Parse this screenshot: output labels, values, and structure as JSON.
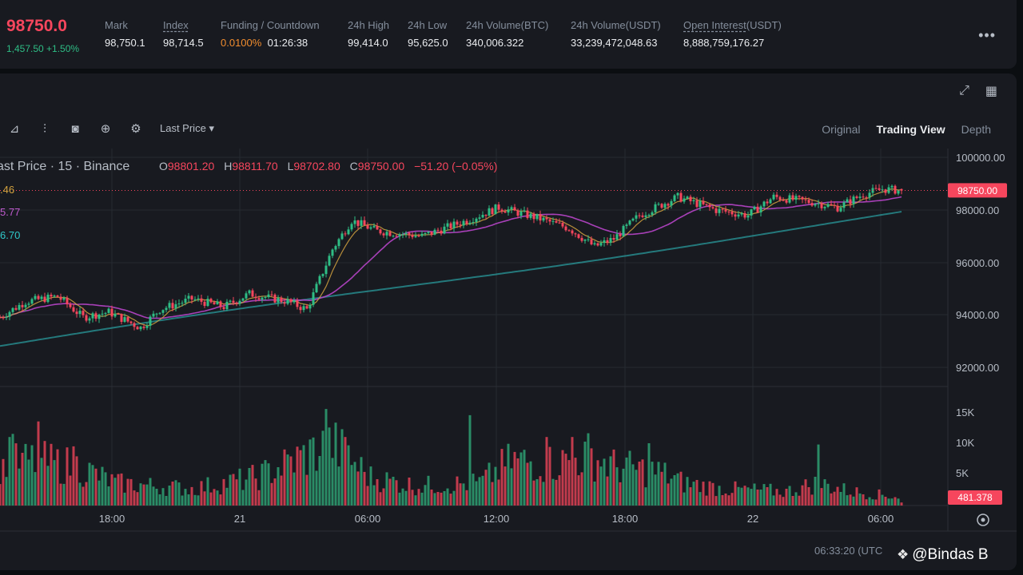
{
  "ticker": {
    "last_price": "98750.0",
    "change": "1,457.50 +1.50%",
    "stats": [
      {
        "label": "Mark",
        "value": "98,750.1",
        "underline": false
      },
      {
        "label": "Index",
        "value": "98,714.5",
        "underline": true
      },
      {
        "label": "Funding / Countdown",
        "value_a": "0.0100%",
        "value_b": "01:26:38",
        "underline": false
      },
      {
        "label": "24h High",
        "value": "99,414.0",
        "underline": false
      },
      {
        "label": "24h Low",
        "value": "95,625.0",
        "underline": false
      },
      {
        "label": "24h Volume(BTC)",
        "value": "340,006.322",
        "underline": false
      },
      {
        "label": "24h Volume(USDT)",
        "value": "33,239,472,048.63",
        "underline": false
      },
      {
        "label_a": "Open Interest",
        "label_b": "(USDT)",
        "value": "8,888,759,176.27"
      }
    ],
    "more_icon": "more-dots-icon"
  },
  "toolbar": {
    "price_type": "Last Price",
    "icons": [
      "indicator-icon",
      "candle-type-icon",
      "camera-icon",
      "add-icon",
      "settings-icon"
    ]
  },
  "view_tabs": [
    "Original",
    "Trading View",
    "Depth"
  ],
  "active_view": "Trading View",
  "legend": {
    "title": "ast Price · 15 · Binance",
    "open_label": "O",
    "open": "98801.20",
    "high_label": "H",
    "high": "98811.70",
    "low_label": "L",
    "low": "98702.80",
    "close_label": "C",
    "close": "98750.00",
    "change": "−51.20 (−0.05%)",
    "ma_values": [
      ".46",
      "5.77",
      "6.70"
    ]
  },
  "colors": {
    "up": "#2ebd85",
    "down": "#f6465d",
    "ma_short": "#d4a33f",
    "ma_mid": "#b845c9",
    "ma_long": "#2fc8c8",
    "price_tag": "#f6465d"
  },
  "chart_data": {
    "type": "candlestick",
    "interval": "15",
    "price_axis": {
      "ticks": [
        "100000.00",
        "98000.00",
        "96000.00",
        "94000.00",
        "92000.00"
      ],
      "range": [
        91000,
        100200
      ]
    },
    "volume_axis": {
      "ticks": [
        "15K",
        "10K",
        "5K"
      ],
      "max": 18000
    },
    "time_ticks": [
      "18:00",
      "21",
      "06:00",
      "12:00",
      "18:00",
      "22",
      "06:00"
    ],
    "last_price_tag": "98750.00",
    "last_volume_tag": "481.378",
    "anchors_close": [
      [
        0,
        93900
      ],
      [
        8,
        94500
      ],
      [
        18,
        94700
      ],
      [
        26,
        93900
      ],
      [
        34,
        94100
      ],
      [
        44,
        93500
      ],
      [
        50,
        94200
      ],
      [
        60,
        94600
      ],
      [
        70,
        94300
      ],
      [
        78,
        94800
      ],
      [
        90,
        94500
      ],
      [
        96,
        94200
      ],
      [
        104,
        96500
      ],
      [
        110,
        97600
      ],
      [
        118,
        97200
      ],
      [
        132,
        97000
      ],
      [
        146,
        97600
      ],
      [
        156,
        98100
      ],
      [
        168,
        97700
      ],
      [
        178,
        97300
      ],
      [
        186,
        96600
      ],
      [
        192,
        96900
      ],
      [
        200,
        97800
      ],
      [
        212,
        98500
      ],
      [
        224,
        98000
      ],
      [
        234,
        97800
      ],
      [
        242,
        98500
      ],
      [
        254,
        98300
      ],
      [
        262,
        98100
      ],
      [
        270,
        98600
      ],
      [
        276,
        98800
      ],
      [
        282,
        98750
      ]
    ],
    "volume_profile": [
      [
        0,
        7000
      ],
      [
        10,
        8000
      ],
      [
        24,
        7000
      ],
      [
        36,
        4000
      ],
      [
        60,
        3000
      ],
      [
        80,
        5000
      ],
      [
        96,
        9000
      ],
      [
        104,
        11000
      ],
      [
        116,
        5000
      ],
      [
        130,
        3500
      ],
      [
        150,
        4000
      ],
      [
        160,
        8000
      ],
      [
        174,
        7500
      ],
      [
        184,
        9000
      ],
      [
        192,
        7000
      ],
      [
        206,
        6000
      ],
      [
        214,
        4000
      ],
      [
        226,
        3000
      ],
      [
        246,
        2500
      ],
      [
        256,
        4000
      ],
      [
        266,
        2500
      ],
      [
        282,
        1500
      ]
    ],
    "volume_spikes": [
      [
        3,
        11000
      ],
      [
        4,
        11500
      ],
      [
        12,
        13500
      ],
      [
        23,
        9500
      ],
      [
        101,
        12000
      ],
      [
        102,
        15500
      ],
      [
        108,
        11000
      ],
      [
        147,
        14500
      ],
      [
        171,
        11000
      ],
      [
        179,
        11000
      ],
      [
        203,
        10000
      ],
      [
        256,
        9800
      ]
    ]
  },
  "footer": {
    "time": "06:33:20 (UTC",
    "watermark": "@Bindas B"
  }
}
